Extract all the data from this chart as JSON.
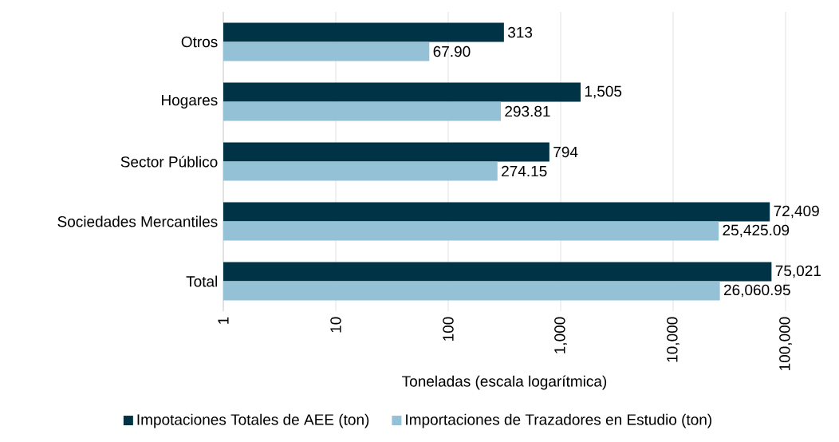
{
  "chart_data": {
    "type": "bar",
    "orientation": "horizontal",
    "log": "x",
    "grid": "x",
    "legend": "bottom",
    "xlabel": "Toneladas (escala logarítmica)",
    "categories": [
      "Otros",
      "Hogares",
      "Sector Público",
      "Sociedades Mercantiles",
      "Total"
    ],
    "series": [
      {
        "name": "Impotaciones Totales de AEE (ton)",
        "color": "#003345",
        "values": [
          313,
          1505,
          794,
          72409,
          75021
        ],
        "value_labels": [
          "313",
          "1,505",
          "794",
          "72,409",
          "75,021"
        ]
      },
      {
        "name": "Importaciones de Trazadores en Estudio (ton)",
        "color": "#94c1d5",
        "values": [
          67.9,
          293.81,
          274.15,
          25425.09,
          26060.95
        ],
        "value_labels": [
          "67.90",
          "293.81",
          "274.15",
          "25,425.09",
          "26,060.95"
        ]
      }
    ],
    "xlim": [
      1,
      100000
    ],
    "xticks": [
      1,
      10,
      100,
      {
        "value": 1000,
        "label": "1,000"
      },
      {
        "value": 10000,
        "label": "10,000"
      },
      {
        "value": 100000,
        "label": "100,000"
      }
    ]
  }
}
